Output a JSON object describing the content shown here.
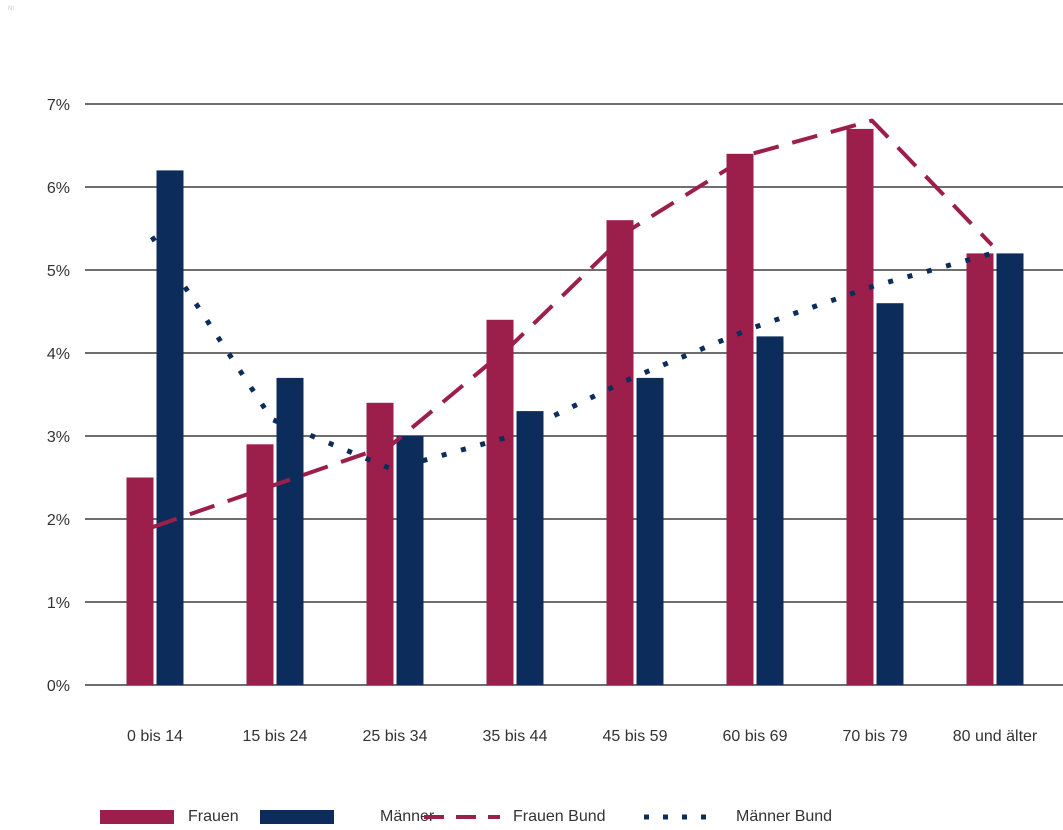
{
  "corner_mark": "NI",
  "colors": {
    "frauen": "#9b1f4a",
    "maenner": "#0c2d5c",
    "grid": "#6e6e6e"
  },
  "chart_data": {
    "type": "bar",
    "title": "",
    "xlabel": "",
    "ylabel": "",
    "categories": [
      "0 bis 14",
      "15 bis 24",
      "25 bis 34",
      "35 bis 44",
      "45 bis 59",
      "60 bis 69",
      "70 bis 79",
      "80 und älter"
    ],
    "ylim": [
      0,
      7
    ],
    "y_ticks": [
      "0%",
      "1%",
      "2%",
      "3%",
      "4%",
      "5%",
      "6%",
      "7%"
    ],
    "grid": true,
    "legend_position": "bottom",
    "series": [
      {
        "name": "Frauen",
        "kind": "bar",
        "values": [
          2.5,
          2.9,
          3.4,
          4.4,
          5.6,
          6.4,
          6.7,
          5.2
        ]
      },
      {
        "name": "Männer",
        "kind": "bar",
        "values": [
          6.2,
          3.7,
          3.0,
          3.3,
          3.7,
          4.2,
          4.6,
          5.2
        ]
      },
      {
        "name": "Frauen Bund",
        "kind": "line",
        "style": "dashed",
        "values": [
          1.9,
          2.4,
          2.9,
          4.1,
          5.5,
          6.4,
          6.8,
          5.3
        ]
      },
      {
        "name": "Männer Bund",
        "kind": "line",
        "style": "dotted",
        "values": [
          5.4,
          3.2,
          2.6,
          3.0,
          3.7,
          4.3,
          4.8,
          5.2
        ]
      }
    ]
  }
}
